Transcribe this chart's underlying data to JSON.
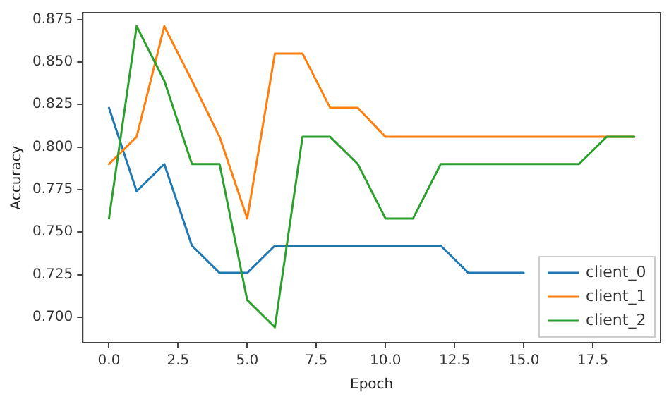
{
  "chart_data": {
    "type": "line",
    "xlabel": "Epoch",
    "ylabel": "Accuracy",
    "x": [
      0,
      1,
      2,
      3,
      4,
      5,
      6,
      7,
      8,
      9,
      10,
      11,
      12,
      13,
      14,
      15,
      16,
      17,
      18,
      19
    ],
    "series": [
      {
        "name": "client_0",
        "color": "#1f77b4",
        "values": [
          0.823,
          0.774,
          0.79,
          0.742,
          0.726,
          0.726,
          0.742,
          0.742,
          0.742,
          0.742,
          0.742,
          0.742,
          0.742,
          0.726,
          0.726,
          0.726,
          null,
          null,
          null,
          null
        ]
      },
      {
        "name": "client_1",
        "color": "#ff7f0e",
        "values": [
          0.79,
          0.806,
          0.871,
          0.839,
          0.806,
          0.758,
          0.855,
          0.855,
          0.823,
          0.823,
          0.806,
          0.806,
          0.806,
          0.806,
          0.806,
          0.806,
          0.806,
          0.806,
          0.806,
          0.806
        ]
      },
      {
        "name": "client_2",
        "color": "#2ca02c",
        "values": [
          0.758,
          0.871,
          0.839,
          0.79,
          0.79,
          0.71,
          0.694,
          0.806,
          0.806,
          0.79,
          0.758,
          0.758,
          0.79,
          0.79,
          0.79,
          0.79,
          0.79,
          0.79,
          0.806,
          0.806
        ]
      }
    ],
    "xlim": [
      -0.95,
      19.95
    ],
    "xticks": [
      {
        "value": 0,
        "label": "0.0"
      },
      {
        "value": 2.5,
        "label": "2.5"
      },
      {
        "value": 5,
        "label": "5.0"
      },
      {
        "value": 7.5,
        "label": "7.5"
      },
      {
        "value": 10,
        "label": "10.0"
      },
      {
        "value": 12.5,
        "label": "12.5"
      },
      {
        "value": 15,
        "label": "15.0"
      },
      {
        "value": 17.5,
        "label": "17.5"
      }
    ],
    "ylim": [
      0.685,
      0.879
    ],
    "yticks": [
      {
        "value": 0.7,
        "label": "0.700"
      },
      {
        "value": 0.725,
        "label": "0.725"
      },
      {
        "value": 0.75,
        "label": "0.750"
      },
      {
        "value": 0.775,
        "label": "0.775"
      },
      {
        "value": 0.8,
        "label": "0.800"
      },
      {
        "value": 0.825,
        "label": "0.825"
      },
      {
        "value": 0.85,
        "label": "0.850"
      },
      {
        "value": 0.875,
        "label": "0.875"
      }
    ],
    "grid": false,
    "legend": "bottom right",
    "marker": "none",
    "line_style": "solid"
  }
}
